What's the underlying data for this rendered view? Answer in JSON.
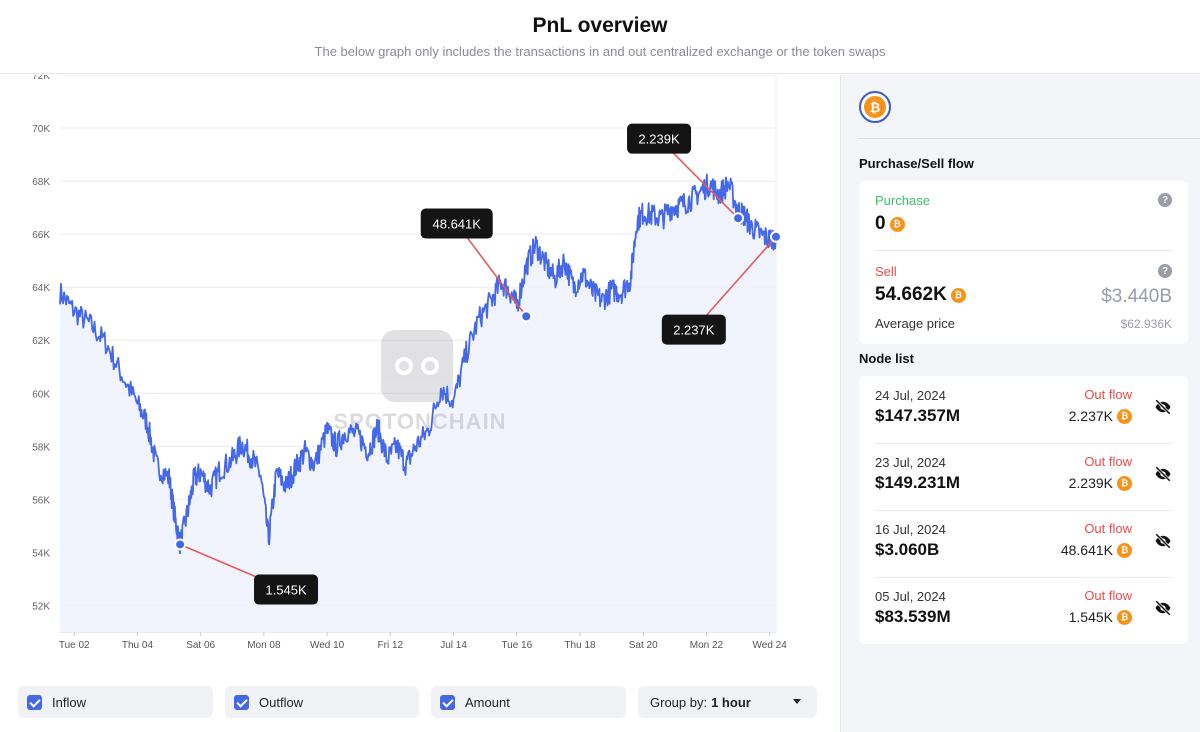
{
  "header": {
    "title": "PnL overview",
    "subtitle": "The below graph only includes the transactions in and out centralized exchange or the token swaps"
  },
  "chart_data": {
    "type": "line",
    "y_ticks": [
      "72K",
      "70K",
      "68K",
      "66K",
      "64K",
      "62K",
      "60K",
      "58K",
      "56K",
      "54K",
      "52K"
    ],
    "ylim": [
      51000,
      72000
    ],
    "x_ticks": [
      "Tue 02",
      "Thu 04",
      "Sat 06",
      "Mon 08",
      "Wed 10",
      "Fri 12",
      "Jul 14",
      "Tue 16",
      "Thu 18",
      "Sat 20",
      "Mon 22",
      "Wed 24"
    ],
    "x_tick_days": [
      2,
      4,
      6,
      8,
      10,
      12,
      14,
      16,
      18,
      20,
      22,
      24
    ],
    "xlim": [
      1.55,
      24.2
    ],
    "series": [
      {
        "x": [
          1.55,
          2.0,
          2.5,
          3.0,
          3.5,
          4.0,
          4.3,
          4.6,
          5.0,
          5.2,
          5.35,
          5.6,
          5.8,
          6.0,
          6.3,
          6.6,
          7.0,
          7.3,
          7.6,
          7.9,
          8.15,
          8.4,
          8.7,
          9.0,
          9.3,
          9.6,
          10.0,
          10.3,
          10.6,
          11.0,
          11.3,
          11.6,
          11.9,
          12.2,
          12.5,
          12.8,
          13.2,
          13.6,
          14.0,
          14.4,
          14.8,
          15.2,
          15.5,
          15.8,
          16.0,
          16.3,
          16.6,
          16.9,
          17.2,
          17.5,
          17.8,
          18.1,
          18.4,
          18.7,
          19.0,
          19.3,
          19.6,
          19.8,
          20.0,
          20.3,
          20.6,
          20.9,
          21.2,
          21.5,
          21.8,
          22.1,
          22.4,
          22.7,
          23.0,
          23.2,
          23.4,
          23.7,
          24.0,
          24.2
        ],
        "values": [
          63800,
          63100,
          62600,
          61900,
          60700,
          59600,
          58900,
          57300,
          56800,
          55200,
          54300,
          55600,
          56800,
          57000,
          56400,
          57100,
          57500,
          58100,
          57600,
          56900,
          54500,
          57000,
          56500,
          57200,
          57800,
          57300,
          58600,
          58000,
          58600,
          58400,
          57800,
          58700,
          57500,
          58000,
          57300,
          58000,
          58600,
          60200,
          59700,
          61500,
          62800,
          63500,
          64200,
          63800,
          63300,
          64800,
          65600,
          64900,
          64300,
          65000,
          64000,
          64500,
          63800,
          63500,
          63900,
          63800,
          64300,
          66500,
          66800,
          66700,
          66600,
          67000,
          67100,
          67300,
          67600,
          67900,
          67500,
          67900,
          66900,
          66700,
          66300,
          66000,
          65800,
          65900
        ]
      }
    ],
    "annotations": [
      {
        "label": "2.239K",
        "x": 23.0,
        "y": 66600,
        "box_x": 20.5,
        "box_y": 69600
      },
      {
        "label": "48.641K",
        "x": 16.3,
        "y": 62900,
        "box_x": 14.1,
        "box_y": 66400
      },
      {
        "label": "2.237K",
        "x": 24.2,
        "y": 65900,
        "box_x": 21.6,
        "box_y": 62400
      },
      {
        "label": "1.545K",
        "x": 5.35,
        "y": 54300,
        "box_x": 8.7,
        "box_y": 52600
      }
    ],
    "line_color": "#4468e8",
    "fill_color": "#eef1fd",
    "annotation_line_color": "#e85a5a",
    "grid": true
  },
  "watermark": "SPOTONCHAIN",
  "controls": {
    "inflow": {
      "label": "Inflow",
      "checked": true
    },
    "outflow": {
      "label": "Outflow",
      "checked": true
    },
    "amount": {
      "label": "Amount",
      "checked": true
    },
    "group_by": {
      "label": "Group by:",
      "value": "1 hour"
    }
  },
  "panel": {
    "coin_icon": "bitcoin-icon",
    "flow_title": "Purchase/Sell flow",
    "purchase": {
      "label": "Purchase",
      "amount": "0"
    },
    "sell": {
      "label": "Sell",
      "amount": "54.662K",
      "usd": "$3.440B",
      "avg_label": "Average price",
      "avg_value": "$62.936K"
    },
    "node_list_title": "Node list",
    "nodes": [
      {
        "date": "24 Jul, 2024",
        "usd": "$147.357M",
        "flow": "Out flow",
        "amount": "2.237K"
      },
      {
        "date": "23 Jul, 2024",
        "usd": "$149.231M",
        "flow": "Out flow",
        "amount": "2.239K"
      },
      {
        "date": "16 Jul, 2024",
        "usd": "$3.060B",
        "flow": "Out flow",
        "amount": "48.641K"
      },
      {
        "date": "05 Jul, 2024",
        "usd": "$83.539M",
        "flow": "Out flow",
        "amount": "1.545K"
      }
    ]
  }
}
